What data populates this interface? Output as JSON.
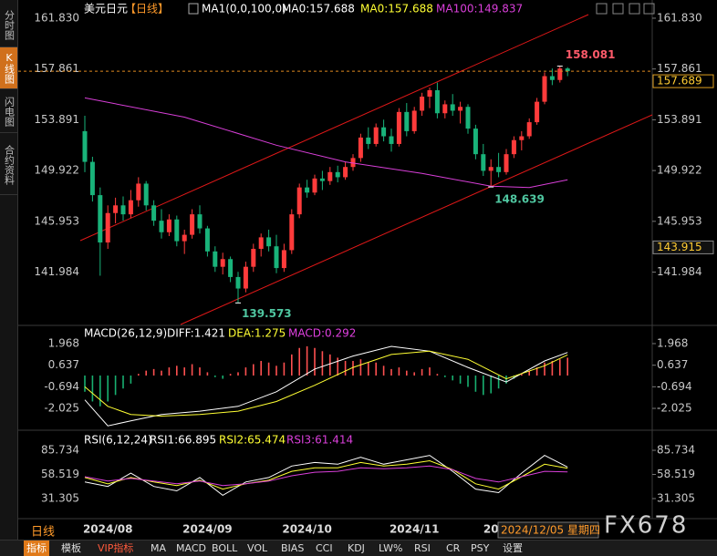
{
  "sidebar": [
    "分时图",
    "K线图",
    "闪电图",
    "合约资料"
  ],
  "chart_data": [
    {
      "type": "candlestick",
      "symbol": "美元日元",
      "period": "【日线】",
      "indicator": "MA1(0,0,100,0)",
      "series": [
        {
          "name": "MA0:157.688",
          "color": "#ffffff"
        },
        {
          "name": "MA0:157.688",
          "color": "#ffff33"
        },
        {
          "name": "MA100:149.837",
          "color": "#d93fd9",
          "x": [
            0,
            13,
            25,
            34,
            44,
            53,
            58,
            63
          ],
          "values": [
            155.6,
            154.1,
            151.9,
            150.6,
            149.7,
            148.7,
            148.6,
            149.2
          ]
        }
      ],
      "categories": [
        null,
        null,
        null,
        "2024/08",
        null,
        null,
        null,
        null,
        null,
        null,
        null,
        null,
        null,
        null,
        null,
        null,
        "2024/09",
        null,
        null,
        null,
        null,
        null,
        null,
        null,
        null,
        null,
        null,
        null,
        null,
        "2024/10",
        null,
        null,
        null,
        null,
        null,
        null,
        null,
        null,
        null,
        null,
        null,
        null,
        null,
        "2024/11",
        null,
        null,
        null,
        null,
        null,
        null,
        null,
        null,
        null,
        "20",
        null,
        null,
        null,
        null,
        null,
        null,
        null,
        null,
        null,
        null
      ],
      "open": [
        153.0,
        150.6,
        148.0,
        144.3,
        146.6,
        147.2,
        146.5,
        147.6,
        148.9,
        147.2,
        146.0,
        145.1,
        146.1,
        144.4,
        144.9,
        146.5,
        145.4,
        143.6,
        142.4,
        143.0,
        141.6,
        140.7,
        142.4,
        143.8,
        144.7,
        144.0,
        142.3,
        143.7,
        146.5,
        148.6,
        148.2,
        149.3,
        149.1,
        149.8,
        149.4,
        150.2,
        150.9,
        152.5,
        152.0,
        153.3,
        152.6,
        152.0,
        154.5,
        153.0,
        154.6,
        155.7,
        156.2,
        154.4,
        155.1,
        154.6,
        154.9,
        153.2,
        151.2,
        149.9,
        150.2,
        149.8,
        151.2,
        152.3,
        152.6,
        153.7,
        155.3,
        157.3,
        157.0,
        157.9
      ],
      "high": [
        154.2,
        151.0,
        148.6,
        147.2,
        147.8,
        147.9,
        148.4,
        149.4,
        149.1,
        147.6,
        146.9,
        146.5,
        146.4,
        145.3,
        146.9,
        147.2,
        145.6,
        144.0,
        143.5,
        143.2,
        142.0,
        142.8,
        144.2,
        145.0,
        145.3,
        144.9,
        144.2,
        146.9,
        148.9,
        149.2,
        149.6,
        149.9,
        150.2,
        150.3,
        150.6,
        151.2,
        152.8,
        153.3,
        153.6,
        153.9,
        153.2,
        154.8,
        155.2,
        154.9,
        156.0,
        156.4,
        156.8,
        155.4,
        155.9,
        155.3,
        155.1,
        153.5,
        152.0,
        150.8,
        151.3,
        151.6,
        152.6,
        153.0,
        154.0,
        155.6,
        157.6,
        157.9,
        158.081,
        158.0
      ],
      "low": [
        149.8,
        147.5,
        141.7,
        143.8,
        145.8,
        146.0,
        146.2,
        147.1,
        146.8,
        145.6,
        144.6,
        144.8,
        144.0,
        143.4,
        144.6,
        145.0,
        143.2,
        142.0,
        141.8,
        141.2,
        139.573,
        140.4,
        142.0,
        143.2,
        143.6,
        141.9,
        142.0,
        143.4,
        146.2,
        147.8,
        148.0,
        148.4,
        148.8,
        149.0,
        149.2,
        149.9,
        150.6,
        151.6,
        151.8,
        152.2,
        151.4,
        151.8,
        152.6,
        152.8,
        154.2,
        154.8,
        154.0,
        154.0,
        154.2,
        153.6,
        152.8,
        150.8,
        149.5,
        148.639,
        149.4,
        149.6,
        150.9,
        151.5,
        152.4,
        153.5,
        155.1,
        156.6,
        156.8,
        157.3
      ],
      "close": [
        150.6,
        148.0,
        144.3,
        146.6,
        147.2,
        146.5,
        147.6,
        148.9,
        147.2,
        146.0,
        145.1,
        146.1,
        144.4,
        144.9,
        146.5,
        145.4,
        143.6,
        142.4,
        143.0,
        141.6,
        140.7,
        142.4,
        143.8,
        144.7,
        144.0,
        142.3,
        143.7,
        146.5,
        148.6,
        148.2,
        149.3,
        149.1,
        149.8,
        149.4,
        150.2,
        150.9,
        152.5,
        152.0,
        153.3,
        152.6,
        152.0,
        154.5,
        153.0,
        154.6,
        155.7,
        156.2,
        154.4,
        155.1,
        154.6,
        154.9,
        153.2,
        151.2,
        149.9,
        150.2,
        149.8,
        151.2,
        152.3,
        152.6,
        153.7,
        155.3,
        157.3,
        157.0,
        157.9,
        157.689
      ],
      "up_color": "#ff3b3b",
      "down_color": "#19b37a",
      "ylim": [
        137.96,
        162.54
      ],
      "yticks": [
        {
          "value": 161.83,
          "label": "161.830"
        },
        157.861,
        153.891,
        149.922,
        145.953,
        141.984
      ],
      "crosshair_price": 143.915,
      "crosshair_date": "2024/12/05 星期四"
    },
    {
      "type": "macd",
      "title": "MACD(26,12,9)",
      "histogram_name": "MACD:0.292",
      "histogram_color": "#e040e0",
      "histogram": [
        -1.0,
        -1.6,
        -1.9,
        -1.6,
        -1.2,
        -0.8,
        -0.5,
        0.1,
        0.3,
        0.4,
        0.3,
        0.5,
        0.6,
        0.5,
        0.7,
        0.5,
        0.2,
        -0.1,
        -0.2,
        0.1,
        0.2,
        0.5,
        0.7,
        0.9,
        0.8,
        0.6,
        0.8,
        1.3,
        1.7,
        1.8,
        1.7,
        1.5,
        1.3,
        1.1,
        0.9,
        0.9,
        1.0,
        0.8,
        0.8,
        0.6,
        0.4,
        0.5,
        0.3,
        0.2,
        0.4,
        0.5,
        0.1,
        -0.1,
        -0.3,
        -0.5,
        -0.7,
        -1.0,
        -1.2,
        -1.1,
        -0.8,
        -0.5,
        -0.2,
        0.1,
        0.3,
        0.5,
        0.8,
        0.9,
        1.0,
        1.1
      ],
      "series": [
        {
          "name": "DIFF:1.421",
          "color": "#ffffff",
          "x": [
            0,
            3,
            6,
            10,
            15,
            20,
            25,
            30,
            35,
            40,
            45,
            50,
            55,
            60,
            63
          ],
          "values": [
            -1.5,
            -3.1,
            -2.8,
            -2.4,
            -2.2,
            -1.9,
            -1.0,
            0.4,
            1.2,
            1.8,
            1.5,
            0.5,
            -0.4,
            0.9,
            1.421
          ]
        },
        {
          "name": "DEA:1.275",
          "color": "#ffff33",
          "x": [
            0,
            3,
            6,
            10,
            15,
            20,
            25,
            30,
            35,
            40,
            45,
            50,
            55,
            60,
            63
          ],
          "values": [
            -0.7,
            -1.9,
            -2.4,
            -2.5,
            -2.4,
            -2.2,
            -1.6,
            -0.6,
            0.5,
            1.3,
            1.5,
            1.0,
            -0.2,
            0.6,
            1.275
          ]
        }
      ],
      "ylim": [
        -3.26,
        2.36
      ],
      "yticks": [
        1.968,
        0.637,
        -0.694,
        -2.025
      ]
    },
    {
      "type": "line",
      "title": "RSI(6,12,24)",
      "series": [
        {
          "name": "RSI1:66.895",
          "color": "#ffffff",
          "x": [
            0,
            3,
            6,
            9,
            12,
            15,
            18,
            21,
            24,
            27,
            30,
            33,
            36,
            39,
            42,
            45,
            48,
            51,
            54,
            57,
            60,
            63
          ],
          "values": [
            50,
            45,
            60,
            45,
            40,
            55,
            35,
            50,
            55,
            68,
            72,
            70,
            78,
            70,
            75,
            80,
            62,
            42,
            38,
            60,
            80,
            66.895
          ]
        },
        {
          "name": "RSI2:65.474",
          "color": "#ffff33",
          "x": [
            0,
            3,
            6,
            9,
            12,
            15,
            18,
            21,
            24,
            27,
            30,
            33,
            36,
            39,
            42,
            45,
            48,
            51,
            54,
            57,
            60,
            63
          ],
          "values": [
            55,
            48,
            55,
            50,
            46,
            52,
            42,
            48,
            52,
            62,
            66,
            66,
            72,
            68,
            70,
            74,
            64,
            48,
            42,
            56,
            70,
            65.474
          ]
        },
        {
          "name": "RSI3:61.414",
          "color": "#d93fd9",
          "x": [
            0,
            3,
            6,
            9,
            12,
            15,
            18,
            21,
            24,
            27,
            30,
            33,
            36,
            39,
            42,
            45,
            48,
            51,
            54,
            57,
            60,
            63
          ],
          "values": [
            56,
            51,
            54,
            51,
            48,
            51,
            46,
            48,
            51,
            57,
            61,
            62,
            66,
            65,
            66,
            68,
            64,
            54,
            50,
            56,
            62,
            61.414
          ]
        }
      ],
      "ylim": [
        12.8,
        94.0
      ],
      "yticks": [
        85.734,
        58.519,
        31.305
      ]
    }
  ],
  "period_label": "日线",
  "watermark": "FX678",
  "toolbar": [
    "指标",
    "模板",
    "VIP指标",
    "MA",
    "MACD",
    "BOLL",
    "VOL",
    "BIAS",
    "CCI",
    "KDJ",
    "LW%",
    "RSI",
    "CR",
    "PSY",
    "设置"
  ]
}
